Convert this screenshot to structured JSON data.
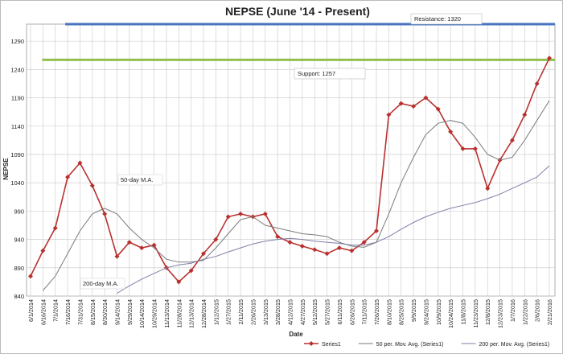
{
  "chart_data": {
    "type": "line",
    "title": "NEPSE (June '14 - Present)",
    "x_label": "Date",
    "y_label": "NEPSE",
    "categories": [
      "6/1/2014",
      "6/16/2014",
      "7/1/2014",
      "7/16/2014",
      "7/31/2014",
      "8/15/2014",
      "8/30/2014",
      "9/14/2014",
      "9/29/2014",
      "10/14/2014",
      "10/29/2014",
      "11/13/2014",
      "11/28/2014",
      "12/13/2014",
      "12/28/2014",
      "1/12/2015",
      "1/27/2015",
      "2/11/2015",
      "2/26/2015",
      "3/13/2015",
      "3/28/2015",
      "4/12/2015",
      "4/27/2015",
      "5/12/2015",
      "5/27/2015",
      "6/11/2015",
      "6/26/2015",
      "7/11/2015",
      "7/26/2015",
      "8/10/2015",
      "8/25/2015",
      "9/9/2015",
      "9/24/2015",
      "10/9/2015",
      "10/24/2015",
      "11/8/2015",
      "11/23/2015",
      "12/8/2015",
      "12/23/2015",
      "1/7/2016",
      "1/22/2016",
      "2/6/2016",
      "2/21/2016"
    ],
    "series": [
      {
        "name": "Series1",
        "color": "#b8312f",
        "marker": true,
        "values": [
          875,
          920,
          960,
          1050,
          1075,
          1035,
          985,
          910,
          935,
          925,
          930,
          890,
          865,
          885,
          915,
          940,
          980,
          985,
          980,
          985,
          945,
          935,
          928,
          922,
          915,
          925,
          920,
          935,
          955,
          1160,
          1180,
          1175,
          1190,
          1170,
          1130,
          1100,
          1100,
          1030,
          1080,
          1115,
          1160,
          1215,
          1260
        ]
      },
      {
        "name": "50 per. Mov. Avg. (Series1)",
        "color": "#7a7a7a",
        "marker": false,
        "values": [
          null,
          850,
          875,
          915,
          955,
          985,
          995,
          985,
          960,
          940,
          925,
          905,
          900,
          900,
          903,
          925,
          950,
          975,
          980,
          965,
          960,
          955,
          950,
          948,
          945,
          935,
          928,
          926,
          935,
          985,
          1040,
          1085,
          1125,
          1145,
          1150,
          1145,
          1120,
          1090,
          1080,
          1085,
          1115,
          1150,
          1185
        ]
      },
      {
        "name": "200 per. Mov. Avg. (Series1)",
        "color": "#7f7fa8",
        "marker": false,
        "values": [
          null,
          null,
          null,
          null,
          null,
          null,
          null,
          845,
          858,
          870,
          880,
          890,
          895,
          898,
          905,
          910,
          918,
          925,
          932,
          937,
          940,
          942,
          940,
          937,
          935,
          933,
          930,
          930,
          935,
          945,
          958,
          970,
          980,
          988,
          995,
          1000,
          1005,
          1012,
          1020,
          1030,
          1040,
          1050,
          1070
        ]
      }
    ],
    "ylim": [
      840,
      1320
    ],
    "yticks": [
      840,
      890,
      940,
      990,
      1040,
      1090,
      1140,
      1190,
      1240,
      1290
    ],
    "grid": true,
    "reference_lines": [
      {
        "label": "Resistance: 1320",
        "value": 1320,
        "color": "#4a74c0"
      },
      {
        "label": "Support: 1257",
        "value": 1257,
        "color": "#92c050"
      }
    ],
    "annotations": [
      "50-day M.A.",
      "200-day M.A."
    ],
    "legend": "bottom-right"
  }
}
